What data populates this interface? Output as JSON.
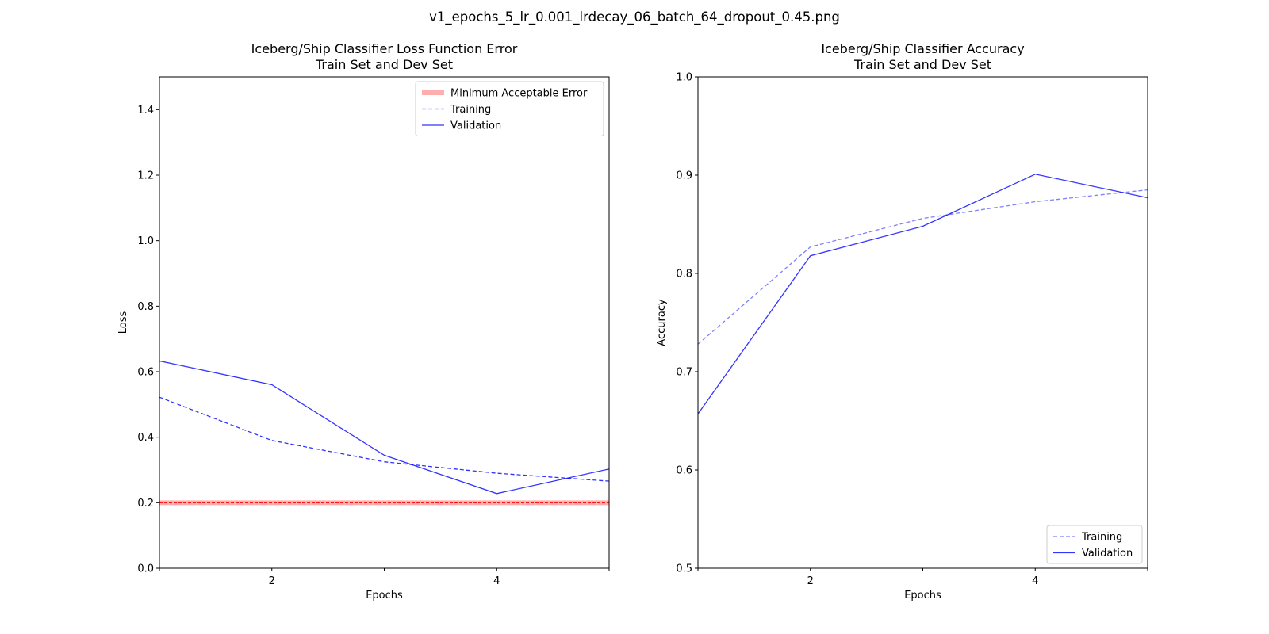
{
  "figure": {
    "suptitle": "v1_epochs_5_lr_0.001_lrdecay_06_batch_64_dropout_0.45.png"
  },
  "chart_data": [
    {
      "type": "line",
      "title": "Iceberg/Ship Classifier Loss Function Error",
      "subtitle": "Train Set and Dev Set",
      "xlabel": "Epochs",
      "ylabel": "Loss",
      "xlim": [
        1,
        5
      ],
      "ylim": [
        0.0,
        1.5
      ],
      "xticks": [
        2,
        4
      ],
      "xtick_labels": [
        "2",
        "4"
      ],
      "yticks": [
        0.0,
        0.2,
        0.4,
        0.6,
        0.8,
        1.0,
        1.2,
        1.4
      ],
      "ytick_labels": [
        "0.0",
        "0.2",
        "0.4",
        "0.6",
        "0.8",
        "1.0",
        "1.2",
        "1.4"
      ],
      "grid": false,
      "legend_position": "upper-right",
      "hline": {
        "name": "Minimum Acceptable Error",
        "y": 0.2,
        "color": "#ff0000"
      },
      "x": [
        1,
        2,
        3,
        4,
        5
      ],
      "series": [
        {
          "name": "Training",
          "values": [
            0.522,
            0.39,
            0.325,
            0.29,
            0.266
          ],
          "color": "#0000ff",
          "style": "dashed"
        },
        {
          "name": "Validation",
          "values": [
            0.633,
            0.56,
            0.345,
            0.228,
            0.303
          ],
          "color": "#0000ff",
          "style": "solid"
        }
      ]
    },
    {
      "type": "line",
      "title": "Iceberg/Ship Classifier Accuracy",
      "subtitle": "Train Set and Dev Set",
      "xlabel": "Epochs",
      "ylabel": "Accuracy",
      "xlim": [
        1,
        5
      ],
      "ylim": [
        0.5,
        1.0
      ],
      "xticks": [
        2,
        4
      ],
      "xtick_labels": [
        "2",
        "4"
      ],
      "yticks": [
        0.5,
        0.6,
        0.7,
        0.8,
        0.9,
        1.0
      ],
      "ytick_labels": [
        "0.5",
        "0.6",
        "0.7",
        "0.8",
        "0.9",
        "1.0"
      ],
      "grid": false,
      "legend_position": "lower-right",
      "x": [
        1,
        2,
        3,
        4,
        5
      ],
      "series": [
        {
          "name": "Training",
          "values": [
            0.728,
            0.827,
            0.856,
            0.873,
            0.885
          ],
          "color": "#0000ff",
          "style": "dashed-light"
        },
        {
          "name": "Validation",
          "values": [
            0.657,
            0.818,
            0.848,
            0.901,
            0.877
          ],
          "color": "#0000ff",
          "style": "solid"
        }
      ]
    }
  ]
}
